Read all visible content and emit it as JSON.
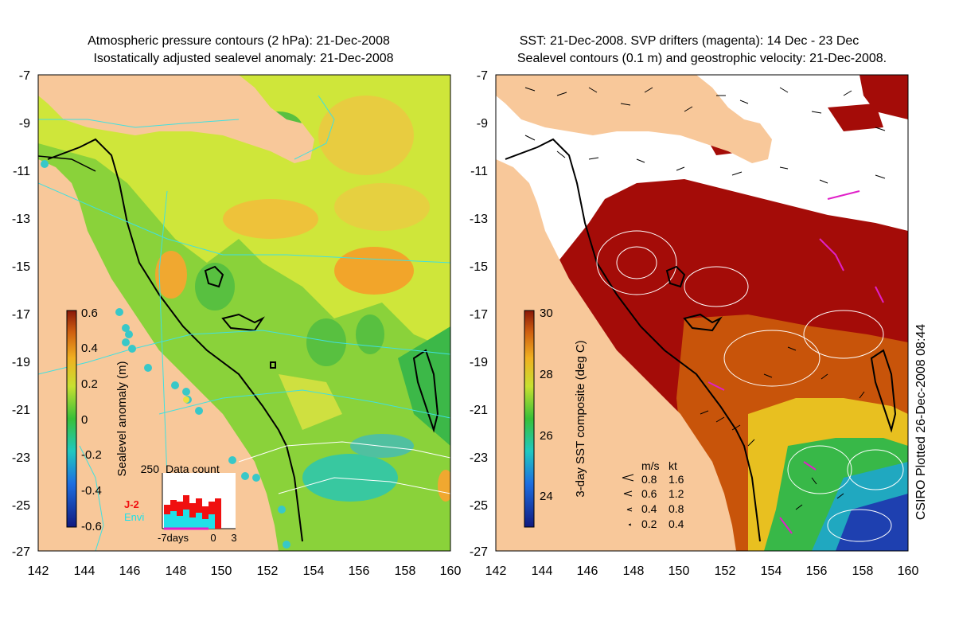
{
  "left_panel": {
    "title_line1": "Atmospheric pressure contours (2 hPa): 21-Dec-2008",
    "title_line2": "Isostatically adjusted sealevel anomaly: 21-Dec-2008",
    "colorbar_label": "Sealevel anomaly (m)",
    "colorbar_ticks": [
      "0.6",
      "0.4",
      "0.2",
      "0",
      "-0.2",
      "-0.4",
      "-0.6"
    ],
    "inset_title": "Data count",
    "inset_max": "250",
    "inset_legend": [
      "J-2",
      "Envi"
    ],
    "inset_x_ticks": [
      "-7days",
      "0",
      "3"
    ]
  },
  "right_panel": {
    "title_line1": "SST: 21-Dec-2008. SVP drifters (magenta): 14 Dec - 23 Dec",
    "title_line2": "Sealevel contours (0.1 m) and geostrophic velocity: 21-Dec-2008.",
    "colorbar_label": "3-day SST composite (deg C)",
    "colorbar_ticks": [
      "30",
      "28",
      "26",
      "24"
    ],
    "velocity_legend": {
      "header": [
        "m/s",
        "kt"
      ],
      "rows": [
        [
          "0.8",
          "1.6"
        ],
        [
          "0.6",
          "1.2"
        ],
        [
          "0.4",
          "0.8"
        ],
        [
          "0.2",
          "0.4"
        ]
      ]
    }
  },
  "axes": {
    "y_ticks": [
      "-7",
      "-9",
      "-11",
      "-13",
      "-15",
      "-17",
      "-19",
      "-21",
      "-23",
      "-25",
      "-27"
    ],
    "x_ticks": [
      "142",
      "144",
      "146",
      "148",
      "150",
      "152",
      "154",
      "156",
      "158",
      "160"
    ]
  },
  "credit": "CSIRO Plotted 26-Dec-2008 08:44",
  "colors": {
    "land": "#f8c89a",
    "sla_green": "#7ccb3c",
    "sla_yellow": "#d8e83a",
    "sst_red": "#a40c08",
    "drifter": "#e020c8",
    "contour_cyan": "#40e0e0"
  }
}
